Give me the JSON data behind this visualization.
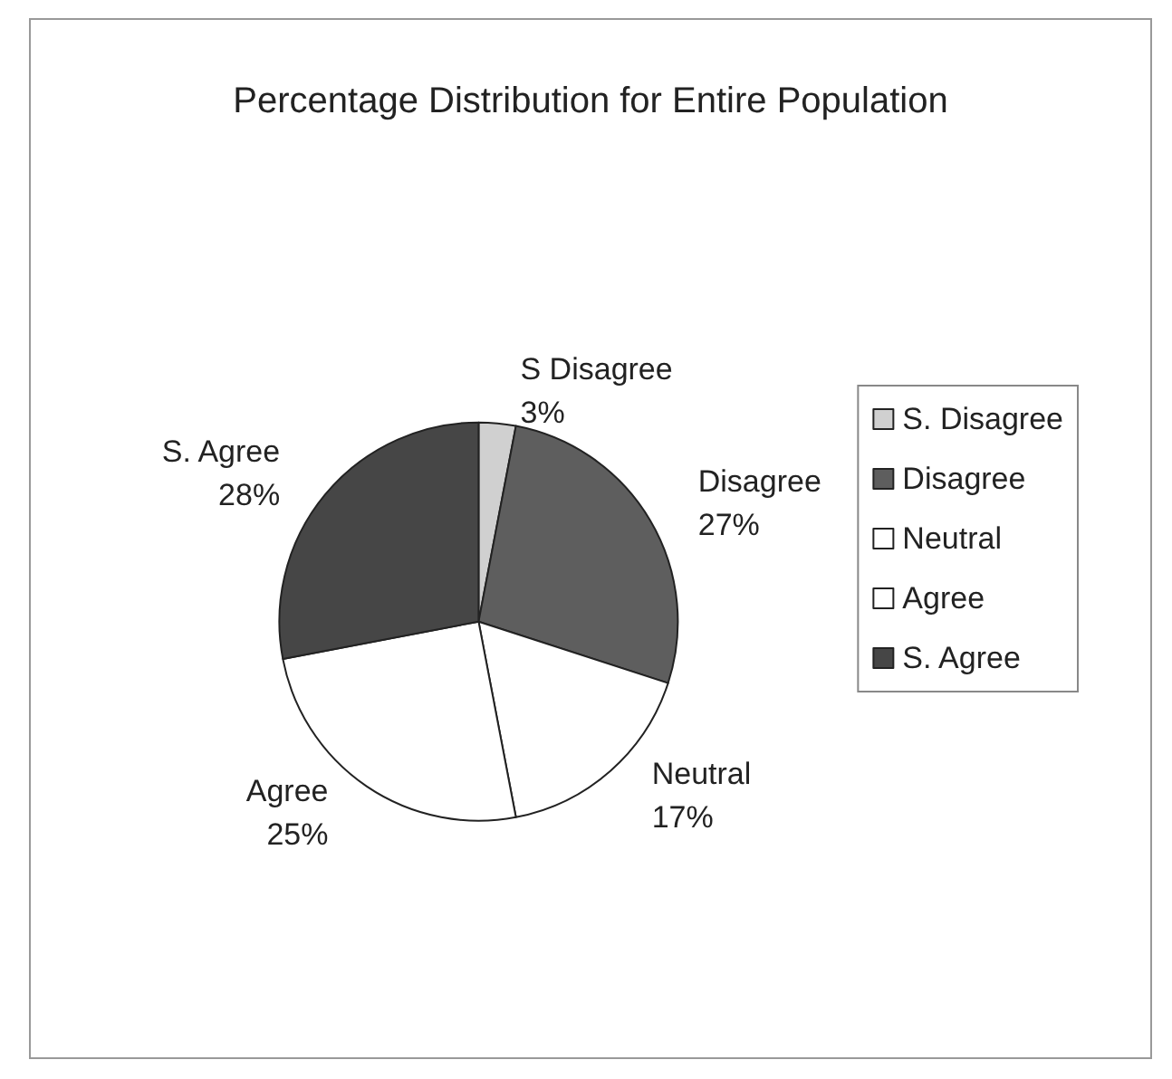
{
  "chart_data": {
    "type": "pie",
    "title": "Percentage Distribution for Entire Population",
    "categories": [
      "S. Disagree",
      "Disagree",
      "Neutral",
      "Agree",
      "S. Agree"
    ],
    "values": [
      3,
      27,
      17,
      25,
      28
    ],
    "colors": [
      "#d0d0d0",
      "#5e5e5e",
      "#ffffff",
      "#ffffff",
      "#464646"
    ],
    "value_labels": [
      "S Disagree\n3%",
      "Disagree\n27%",
      "Neutral\n17%",
      "Agree\n25%",
      "S. Agree\n28%"
    ],
    "legend": "right"
  }
}
